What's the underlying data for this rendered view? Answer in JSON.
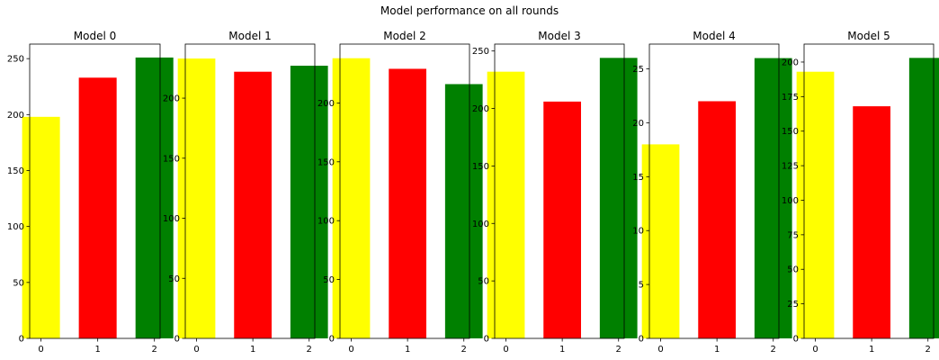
{
  "figure": {
    "title": "Model performance on all rounds"
  },
  "colors": {
    "bars": [
      "#ffff00",
      "#ff0000",
      "#008000"
    ],
    "axis": "#000000"
  },
  "chart_data": [
    {
      "type": "bar",
      "title": "Model 0",
      "x": [
        0,
        1,
        2
      ],
      "values": [
        198,
        233,
        251
      ],
      "xlim": [
        -0.2,
        2.1
      ],
      "ylim": [
        0,
        263
      ],
      "xticks": [
        0,
        1,
        2
      ],
      "yticks": [
        0,
        50,
        100,
        150,
        200,
        250
      ]
    },
    {
      "type": "bar",
      "title": "Model 1",
      "x": [
        0,
        1,
        2
      ],
      "values": [
        233,
        222,
        227
      ],
      "xlim": [
        -0.2,
        2.1
      ],
      "ylim": [
        0,
        245
      ],
      "xticks": [
        0,
        1,
        2
      ],
      "yticks": [
        0,
        50,
        100,
        150,
        200
      ]
    },
    {
      "type": "bar",
      "title": "Model 2",
      "x": [
        0,
        1,
        2
      ],
      "values": [
        238,
        229,
        216
      ],
      "xlim": [
        -0.2,
        2.1
      ],
      "ylim": [
        0,
        250
      ],
      "xticks": [
        0,
        1,
        2
      ],
      "yticks": [
        0,
        50,
        100,
        150,
        200
      ]
    },
    {
      "type": "bar",
      "title": "Model 3",
      "x": [
        0,
        1,
        2
      ],
      "values": [
        232,
        206,
        244
      ],
      "xlim": [
        -0.2,
        2.1
      ],
      "ylim": [
        0,
        256
      ],
      "xticks": [
        0,
        1,
        2
      ],
      "yticks": [
        0,
        50,
        100,
        150,
        200,
        250
      ]
    },
    {
      "type": "bar",
      "title": "Model 4",
      "x": [
        0,
        1,
        2
      ],
      "values": [
        18,
        22,
        26
      ],
      "xlim": [
        -0.2,
        2.1
      ],
      "ylim": [
        0,
        27.3
      ],
      "xticks": [
        0,
        1,
        2
      ],
      "yticks": [
        0,
        5,
        10,
        15,
        20,
        25
      ]
    },
    {
      "type": "bar",
      "title": "Model 5",
      "x": [
        0,
        1,
        2
      ],
      "values": [
        193,
        168,
        203
      ],
      "xlim": [
        -0.2,
        2.1
      ],
      "ylim": [
        0,
        213
      ],
      "xticks": [
        0,
        1,
        2
      ],
      "yticks": [
        0,
        25,
        50,
        75,
        100,
        125,
        150,
        175,
        200
      ]
    }
  ]
}
